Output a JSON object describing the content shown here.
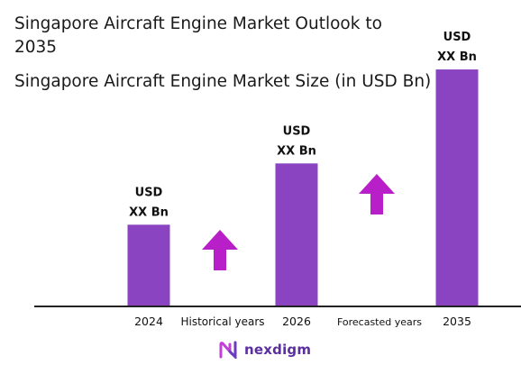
{
  "header": {
    "title": "Singapore Aircraft Engine Market Outlook to 2035",
    "subtitle": "Singapore Aircraft Engine Market Size (in USD Bn)"
  },
  "chart_data": {
    "type": "bar",
    "title": "Singapore Aircraft Engine Market Outlook to 2035",
    "subtitle": "Singapore Aircraft Engine Market Size (in USD Bn)",
    "categories": [
      "2024",
      "2026",
      "2035"
    ],
    "values": [
      1.0,
      1.75,
      2.9
    ],
    "value_labels": [
      [
        "USD",
        "XX Bn"
      ],
      [
        "USD",
        "XX Bn"
      ],
      [
        "USD",
        "XX Bn"
      ]
    ],
    "period_labels": [
      "Historical years",
      "Forecasted years"
    ],
    "bar_color": "#8a44c2",
    "arrow_color": "#b81fc9",
    "ylim": [
      0,
      3.0
    ],
    "grid": false
  },
  "brand": {
    "name": "nexdigm",
    "color": "#5b2fa0"
  }
}
